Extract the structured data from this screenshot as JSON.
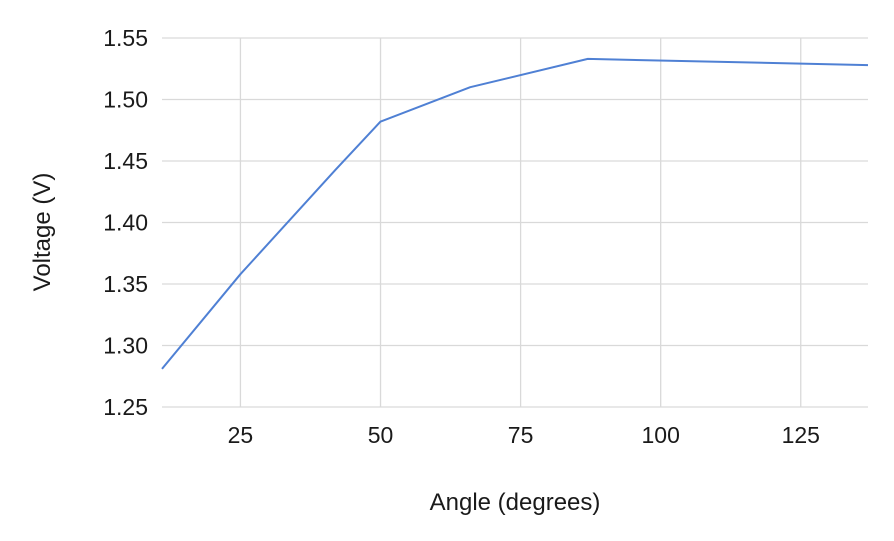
{
  "chart_data": {
    "type": "line",
    "title": "",
    "xlabel": "Angle (degrees)",
    "ylabel": "Voltage (V)",
    "xlim": [
      11,
      137
    ],
    "ylim": [
      1.25,
      1.55
    ],
    "x_ticks": [
      25,
      50,
      75,
      100,
      125
    ],
    "x_tick_labels": [
      "25",
      "50",
      "75",
      "100",
      "125"
    ],
    "y_ticks": [
      1.25,
      1.3,
      1.35,
      1.4,
      1.45,
      1.5,
      1.55
    ],
    "y_tick_labels": [
      "1.25",
      "1.30",
      "1.35",
      "1.40",
      "1.45",
      "1.50",
      "1.55"
    ],
    "grid": true,
    "line_color": "#4f80d4",
    "grid_color": "#d9d9d9",
    "series": [
      {
        "x": [
          11,
          25,
          42,
          50,
          66,
          87,
          137
        ],
        "y": [
          1.281,
          1.358,
          1.443,
          1.482,
          1.51,
          1.533,
          1.528
        ]
      }
    ]
  }
}
